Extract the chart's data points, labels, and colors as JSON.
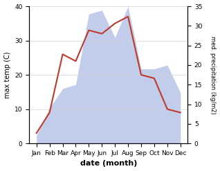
{
  "months": [
    "Jan",
    "Feb",
    "Mar",
    "Apr",
    "May",
    "Jun",
    "Jul",
    "Aug",
    "Sep",
    "Oct",
    "Nov",
    "Dec"
  ],
  "temperature": [
    3,
    9,
    26,
    24,
    33,
    32,
    35,
    37,
    20,
    19,
    10,
    9
  ],
  "precipitation": [
    2,
    9,
    14,
    15,
    33,
    34,
    27,
    35,
    19,
    19,
    20,
    13
  ],
  "temp_color": "#c0392b",
  "precip_color": "#b8c4e8",
  "title": "",
  "xlabel": "date (month)",
  "ylabel_left": "max temp (C)",
  "ylabel_right": "med. precipitation (kg/m2)",
  "ylim_left": [
    0,
    40
  ],
  "ylim_right": [
    0,
    35
  ],
  "yticks_left": [
    0,
    10,
    20,
    30,
    40
  ],
  "yticks_right": [
    0,
    5,
    10,
    15,
    20,
    25,
    30,
    35
  ],
  "fig_width": 3.18,
  "fig_height": 2.47,
  "dpi": 100
}
